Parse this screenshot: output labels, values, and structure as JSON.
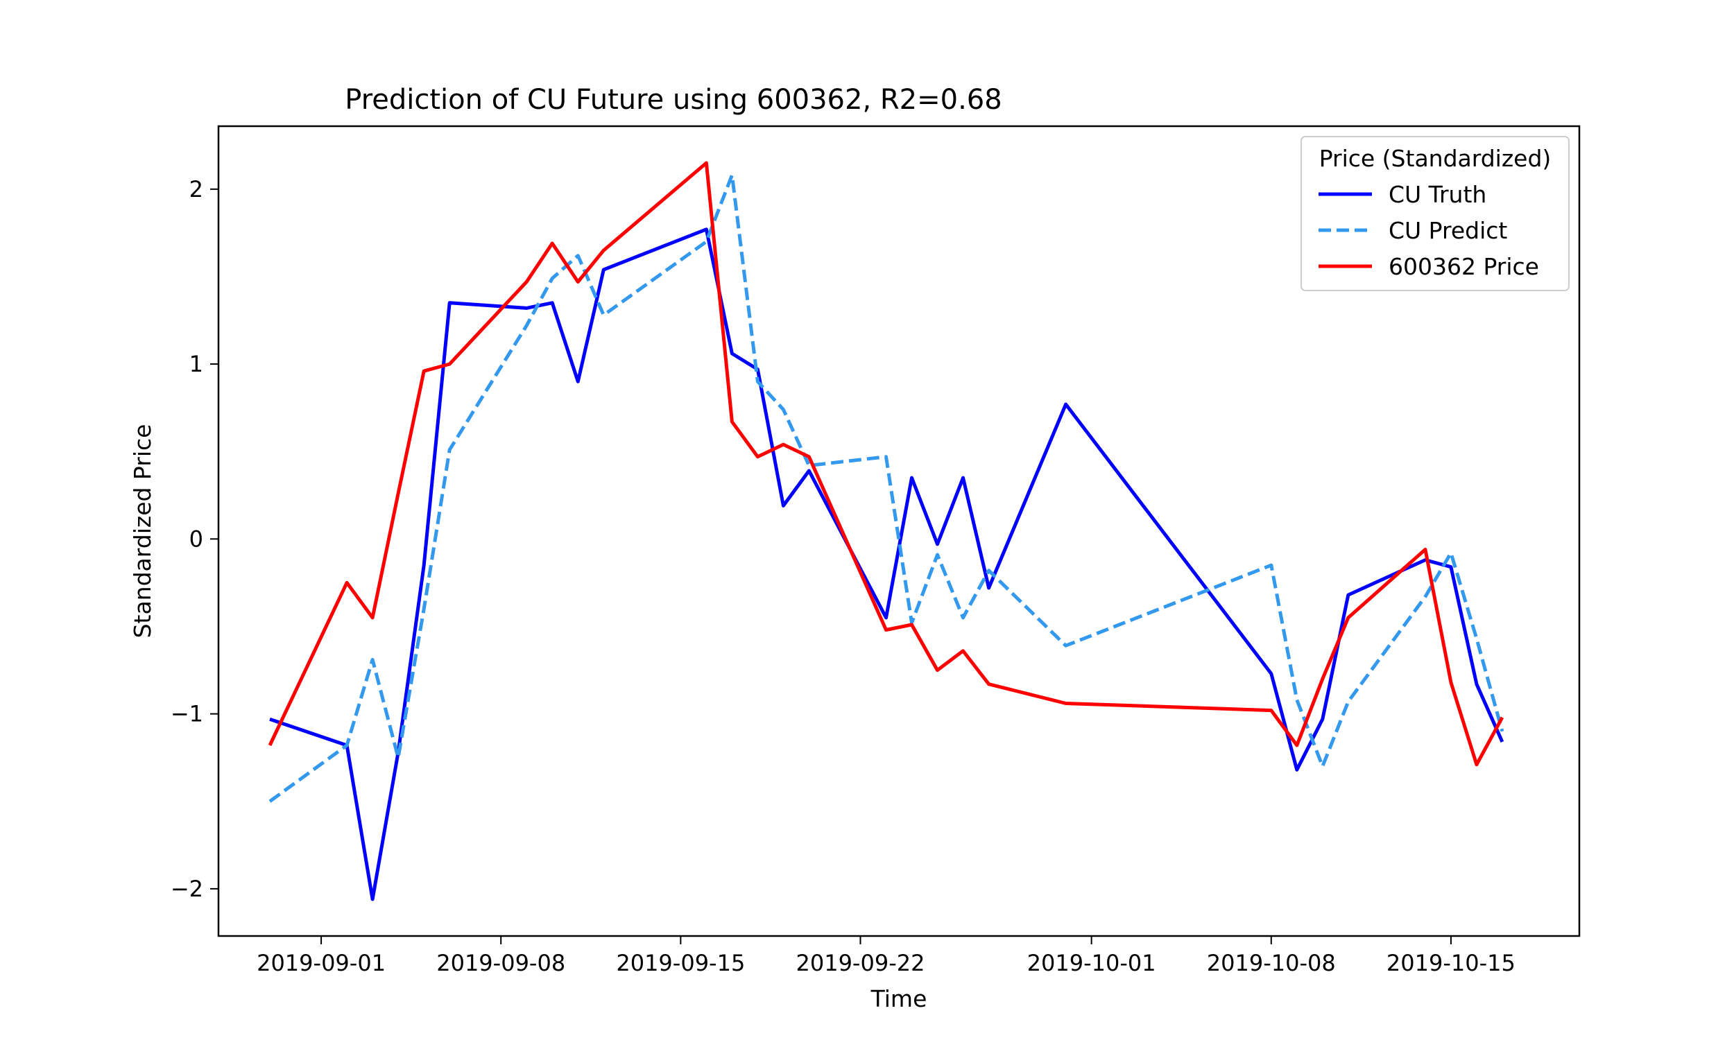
{
  "chart_data": {
    "type": "line",
    "title": "Prediction of CU Future using 600362, R2=0.68",
    "xlabel": "Time",
    "ylabel": "Standardized Price",
    "xlim": [
      "2019-08-28",
      "2019-10-20"
    ],
    "ylim": [
      -2.27,
      2.36
    ],
    "x_ticks": [
      "2019-09-01",
      "2019-09-08",
      "2019-09-15",
      "2019-09-22",
      "2019-10-01",
      "2019-10-08",
      "2019-10-15"
    ],
    "y_ticks": [
      2,
      1,
      0,
      -1,
      -2
    ],
    "y_tick_labels": [
      "2",
      "1",
      "0",
      "−1",
      "−2"
    ],
    "grid": false,
    "legend": {
      "title": "Price (Standardized)",
      "placement": "top-right"
    },
    "series": [
      {
        "name": "CU Truth",
        "color": "#0000ff",
        "dash": "solid",
        "x": [
          "2019-08-30",
          "2019-09-02",
          "2019-09-03",
          "2019-09-04",
          "2019-09-05",
          "2019-09-06",
          "2019-09-09",
          "2019-09-10",
          "2019-09-11",
          "2019-09-12",
          "2019-09-16",
          "2019-09-17",
          "2019-09-18",
          "2019-09-19",
          "2019-09-20",
          "2019-09-23",
          "2019-09-24",
          "2019-09-25",
          "2019-09-26",
          "2019-09-27",
          "2019-09-30",
          "2019-10-08",
          "2019-10-09",
          "2019-10-10",
          "2019-10-11",
          "2019-10-14",
          "2019-10-15",
          "2019-10-16",
          "2019-10-17"
        ],
        "y": [
          -1.03,
          -1.18,
          -2.06,
          -1.22,
          -0.15,
          1.35,
          1.32,
          1.35,
          0.9,
          1.54,
          1.77,
          1.06,
          0.97,
          0.19,
          0.39,
          -0.45,
          0.35,
          -0.03,
          0.35,
          -0.28,
          0.77,
          -0.77,
          -1.32,
          -1.03,
          -0.32,
          -0.12,
          -0.16,
          -0.83,
          -1.16
        ]
      },
      {
        "name": "CU Predict",
        "color": "#3399ee",
        "dash": "dashed",
        "x": [
          "2019-08-30",
          "2019-09-02",
          "2019-09-03",
          "2019-09-04",
          "2019-09-05",
          "2019-09-06",
          "2019-09-09",
          "2019-09-10",
          "2019-09-11",
          "2019-09-12",
          "2019-09-16",
          "2019-09-17",
          "2019-09-18",
          "2019-09-19",
          "2019-09-20",
          "2019-09-23",
          "2019-09-24",
          "2019-09-25",
          "2019-09-26",
          "2019-09-27",
          "2019-09-30",
          "2019-10-08",
          "2019-10-09",
          "2019-10-10",
          "2019-10-11",
          "2019-10-14",
          "2019-10-15",
          "2019-10-16",
          "2019-10-17"
        ],
        "y": [
          -1.5,
          -1.18,
          -0.69,
          -1.25,
          -0.4,
          0.51,
          1.22,
          1.49,
          1.62,
          1.28,
          1.7,
          2.08,
          0.9,
          0.74,
          0.42,
          0.47,
          -0.48,
          -0.09,
          -0.45,
          -0.18,
          -0.61,
          -0.15,
          -0.92,
          -1.3,
          -0.93,
          -0.33,
          -0.08,
          -0.57,
          -1.1
        ]
      },
      {
        "name": "600362 Price",
        "color": "#ff0000",
        "dash": "solid",
        "x": [
          "2019-08-30",
          "2019-09-02",
          "2019-09-03",
          "2019-09-04",
          "2019-09-05",
          "2019-09-06",
          "2019-09-09",
          "2019-09-10",
          "2019-09-11",
          "2019-09-12",
          "2019-09-16",
          "2019-09-17",
          "2019-09-18",
          "2019-09-19",
          "2019-09-20",
          "2019-09-23",
          "2019-09-24",
          "2019-09-25",
          "2019-09-26",
          "2019-09-27",
          "2019-09-30",
          "2019-10-08",
          "2019-10-09",
          "2019-10-10",
          "2019-10-11",
          "2019-10-14",
          "2019-10-15",
          "2019-10-16",
          "2019-10-17"
        ],
        "y": [
          -1.18,
          -0.25,
          -0.45,
          0.26,
          0.96,
          1.0,
          1.47,
          1.69,
          1.47,
          1.65,
          2.15,
          0.67,
          0.47,
          0.54,
          0.47,
          -0.52,
          -0.49,
          -0.75,
          -0.64,
          -0.83,
          -0.94,
          -0.98,
          -1.18,
          -0.8,
          -0.45,
          -0.06,
          -0.82,
          -1.29,
          -1.02
        ]
      }
    ]
  }
}
